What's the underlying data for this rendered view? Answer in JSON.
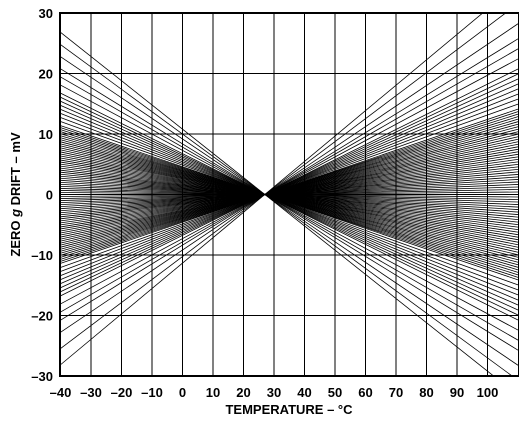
{
  "chart_data": {
    "type": "line",
    "title": "",
    "xlabel": "TEMPERATURE – °C",
    "ylabel_parts": [
      "ZERO ",
      "g",
      " DRIFT – mV"
    ],
    "xlim": [
      -40,
      110
    ],
    "ylim": [
      -30,
      30
    ],
    "x_ticks": [
      -40,
      -30,
      -20,
      -10,
      0,
      10,
      20,
      30,
      40,
      50,
      60,
      70,
      80,
      90,
      100
    ],
    "x_tick_labels": [
      "–40",
      "–30",
      "–20",
      "–10",
      "0",
      "10",
      "20",
      "30",
      "40",
      "50",
      "60",
      "70",
      "80",
      "90",
      "100"
    ],
    "y_ticks": [
      -30,
      -20,
      -10,
      0,
      10,
      20,
      30
    ],
    "y_tick_labels": [
      "–30",
      "–20",
      "–10",
      "0",
      "10",
      "20",
      "30"
    ],
    "grid": true,
    "pivot": {
      "x": 27,
      "y": 0
    },
    "series_description": "Family of straight drift lines for individual devices, all crossing 0 mV at about 27 °C",
    "slopes_mV_per_C": [
      0.42,
      0.38,
      0.34,
      0.31,
      0.29,
      0.27,
      0.25,
      0.24,
      0.23,
      0.22,
      0.21,
      0.2,
      0.19,
      0.18,
      0.17,
      0.165,
      0.16,
      0.155,
      0.15,
      0.145,
      0.14,
      0.135,
      0.13,
      0.125,
      0.12,
      0.115,
      0.11,
      0.105,
      0.1,
      0.095,
      0.09,
      0.085,
      0.08,
      0.075,
      0.07,
      0.065,
      0.06,
      0.055,
      0.05,
      0.045,
      0.04,
      0.035,
      0.03,
      0.025,
      0.02,
      0.015,
      0.01,
      0.005,
      0.0,
      -0.005,
      -0.01,
      -0.015,
      -0.02,
      -0.025,
      -0.03,
      -0.035,
      -0.04,
      -0.045,
      -0.05,
      -0.055,
      -0.06,
      -0.065,
      -0.07,
      -0.075,
      -0.08,
      -0.085,
      -0.09,
      -0.095,
      -0.1,
      -0.105,
      -0.11,
      -0.115,
      -0.12,
      -0.125,
      -0.13,
      -0.135,
      -0.14,
      -0.145,
      -0.15,
      -0.155,
      -0.16,
      -0.165,
      -0.17,
      -0.18,
      -0.19,
      -0.2,
      -0.21,
      -0.22,
      -0.23,
      -0.24,
      -0.25,
      -0.27,
      -0.29,
      -0.31,
      -0.34,
      -0.37,
      -0.4
    ],
    "line_color": "#000000"
  }
}
